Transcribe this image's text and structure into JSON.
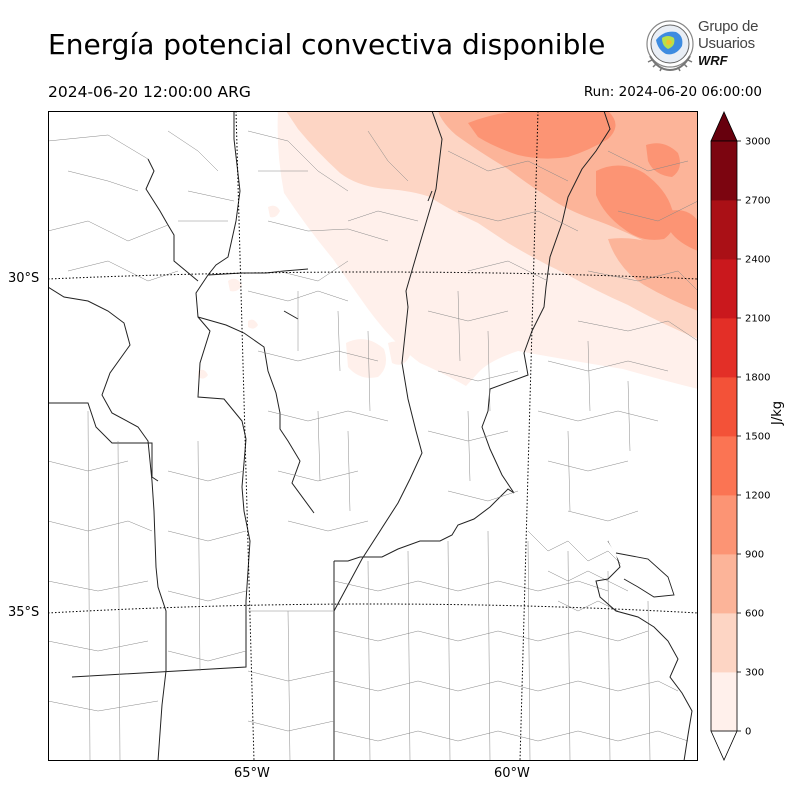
{
  "header": {
    "title": "Energía potencial convectiva disponible",
    "valid_time": "2024-06-20 12:00:00 ARG",
    "run_time": "Run: 2024-06-20 06:00:00"
  },
  "logo": {
    "line1": "Grupo de",
    "line2": "Usuarios",
    "line3": "WRF"
  },
  "map": {
    "lat_labels": [
      "30°S",
      "35°S"
    ],
    "lon_labels": [
      "65°W",
      "60°W"
    ],
    "field": "CAPE"
  },
  "colorbar": {
    "unit_label": "J/kg",
    "ticks": [
      "0",
      "300",
      "600",
      "900",
      "1200",
      "1500",
      "1800",
      "2100",
      "2400",
      "2700",
      "3000"
    ],
    "levels": [
      0,
      300,
      600,
      900,
      1200,
      1500,
      1800,
      2100,
      2400,
      2700,
      3000
    ],
    "colors": [
      "#fff0eb",
      "#fdd5c4",
      "#fcb499",
      "#fc9474",
      "#fb7453",
      "#f35238",
      "#e32f27",
      "#ca181d",
      "#aa1016",
      "#7c0510"
    ],
    "extend": "both"
  }
}
